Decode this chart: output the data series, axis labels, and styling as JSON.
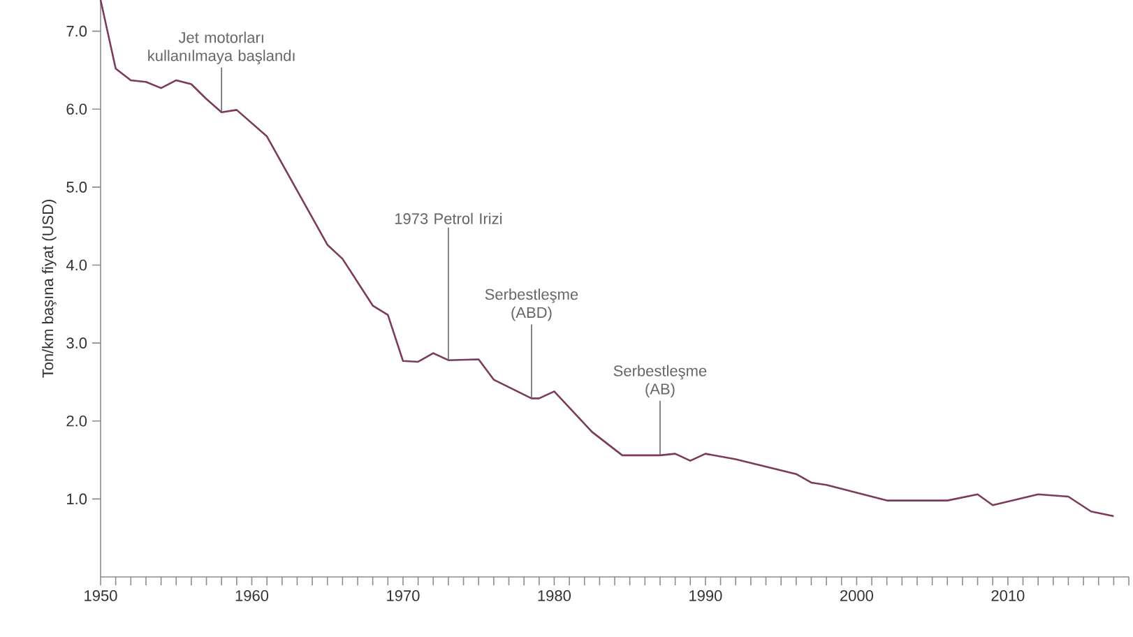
{
  "chart_data": {
    "type": "line",
    "ylabel": "Ton/km başına fiyat (USD)",
    "x": [
      1950,
      1951,
      1952,
      1953,
      1954,
      1955,
      1956,
      1957,
      1958,
      1959,
      1961,
      1965,
      1966,
      1968,
      1969,
      1970,
      1971,
      1972,
      1973,
      1975,
      1976,
      1978.5,
      1979,
      1980,
      1982.5,
      1984.5,
      1987,
      1988,
      1989,
      1990,
      1992,
      1996,
      1997,
      1998,
      2002,
      2006,
      2008,
      2009,
      2012,
      2014,
      2015.5,
      2017
    ],
    "series": [
      {
        "color": "#7a3b5c",
        "values": [
          7.4,
          6.52,
          6.37,
          6.35,
          6.27,
          6.37,
          6.32,
          6.13,
          5.96,
          5.99,
          5.65,
          4.26,
          4.08,
          3.48,
          3.36,
          2.77,
          2.76,
          2.87,
          2.78,
          2.79,
          2.53,
          2.29,
          2.29,
          2.38,
          1.86,
          1.56,
          1.56,
          1.58,
          1.49,
          1.58,
          1.51,
          1.32,
          1.21,
          1.18,
          0.98,
          0.98,
          1.06,
          0.92,
          1.06,
          1.03,
          0.84,
          0.78
        ]
      }
    ],
    "xlim": [
      1950,
      2018
    ],
    "ylim": [
      0,
      7.4
    ],
    "xticks": [
      1950,
      {
        "value": 1951,
        "label": null
      },
      {
        "value": 1952,
        "label": null
      },
      {
        "value": 1953,
        "label": null
      },
      {
        "value": 1954,
        "label": null
      },
      {
        "value": 1955,
        "label": null
      },
      {
        "value": 1956,
        "label": null
      },
      {
        "value": 1957,
        "label": null
      },
      {
        "value": 1958,
        "label": null
      },
      {
        "value": 1959,
        "label": null
      },
      1960,
      {
        "value": 1961,
        "label": null
      },
      {
        "value": 1962,
        "label": null
      },
      {
        "value": 1963,
        "label": null
      },
      {
        "value": 1964,
        "label": null
      },
      {
        "value": 1965,
        "label": null
      },
      {
        "value": 1966,
        "label": null
      },
      {
        "value": 1967,
        "label": null
      },
      {
        "value": 1968,
        "label": null
      },
      {
        "value": 1969,
        "label": null
      },
      1970,
      {
        "value": 1971,
        "label": null
      },
      {
        "value": 1972,
        "label": null
      },
      {
        "value": 1973,
        "label": null
      },
      {
        "value": 1974,
        "label": null
      },
      {
        "value": 1975,
        "label": null
      },
      {
        "value": 1976,
        "label": null
      },
      {
        "value": 1977,
        "label": null
      },
      {
        "value": 1978,
        "label": null
      },
      {
        "value": 1979,
        "label": null
      },
      1980,
      {
        "value": 1981,
        "label": null
      },
      {
        "value": 1982,
        "label": null
      },
      {
        "value": 1983,
        "label": null
      },
      {
        "value": 1984,
        "label": null
      },
      {
        "value": 1985,
        "label": null
      },
      {
        "value": 1986,
        "label": null
      },
      {
        "value": 1987,
        "label": null
      },
      {
        "value": 1988,
        "label": null
      },
      {
        "value": 1989,
        "label": null
      },
      1990,
      {
        "value": 1991,
        "label": null
      },
      {
        "value": 1992,
        "label": null
      },
      {
        "value": 1993,
        "label": null
      },
      {
        "value": 1994,
        "label": null
      },
      {
        "value": 1995,
        "label": null
      },
      {
        "value": 1996,
        "label": null
      },
      {
        "value": 1997,
        "label": null
      },
      {
        "value": 1998,
        "label": null
      },
      {
        "value": 1999,
        "label": null
      },
      2000,
      {
        "value": 2001,
        "label": null
      },
      {
        "value": 2002,
        "label": null
      },
      {
        "value": 2003,
        "label": null
      },
      {
        "value": 2004,
        "label": null
      },
      {
        "value": 2005,
        "label": null
      },
      {
        "value": 2006,
        "label": null
      },
      {
        "value": 2007,
        "label": null
      },
      {
        "value": 2008,
        "label": null
      },
      {
        "value": 2009,
        "label": null
      },
      2010,
      {
        "value": 2011,
        "label": null
      },
      {
        "value": 2012,
        "label": null
      },
      {
        "value": 2013,
        "label": null
      },
      {
        "value": 2014,
        "label": null
      },
      {
        "value": 2015,
        "label": null
      },
      {
        "value": 2016,
        "label": null
      },
      {
        "value": 2017,
        "label": null
      },
      {
        "value": 2018,
        "label": null
      }
    ],
    "yticks": [
      {
        "value": 1,
        "label": "1.0"
      },
      {
        "value": 2,
        "label": "2.0"
      },
      {
        "value": 3,
        "label": "3.0"
      },
      {
        "value": 4,
        "label": "4.0"
      },
      {
        "value": 5,
        "label": "5.0"
      },
      {
        "value": 6,
        "label": "6.0"
      },
      {
        "value": 7,
        "label": "7.0"
      }
    ],
    "grid": false,
    "marker": "none",
    "line_style": "solid",
    "annotations": [
      {
        "text": "Jet motorları kullanılmaya başlandı",
        "x": 1958,
        "y": 5.96
      },
      {
        "text": "1973 Petrol Irizi",
        "x": 1973,
        "y": 2.78
      },
      {
        "text": "Serbestleşme (ABD)",
        "x": 1978.5,
        "y": 2.29
      },
      {
        "text": "Serbestleşme (AB)",
        "x": 1987,
        "y": 1.56
      }
    ]
  }
}
